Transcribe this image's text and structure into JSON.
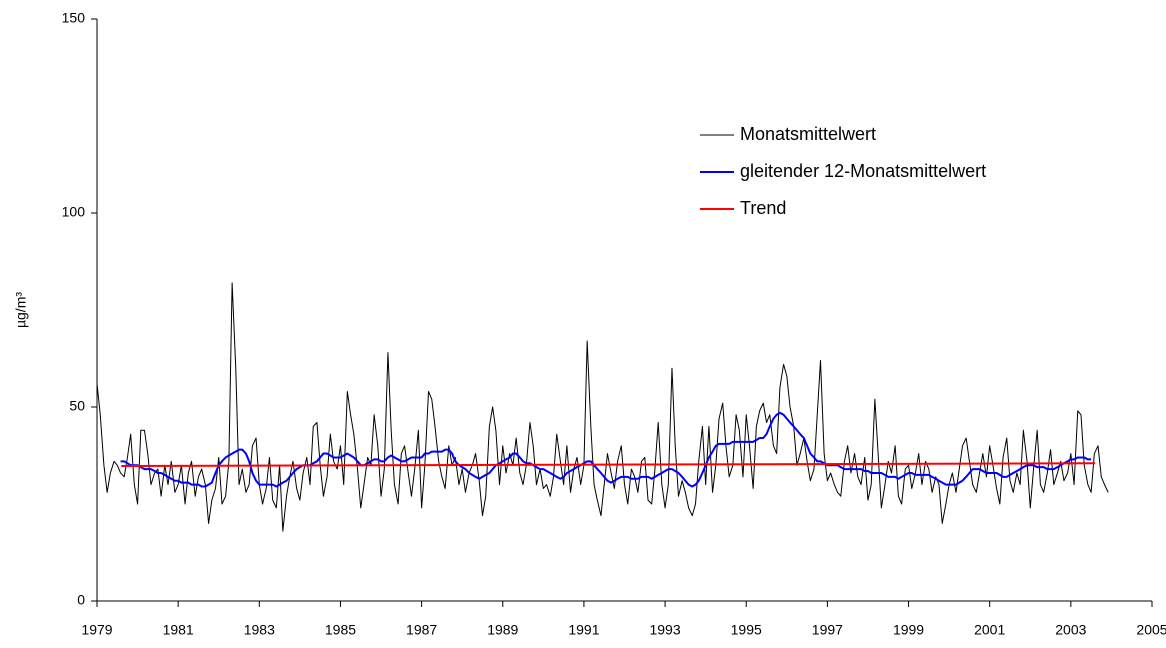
{
  "chart_data": {
    "type": "line",
    "ylabel": "µg/m³",
    "legend": "upper right",
    "xlim": [
      1979,
      2005
    ],
    "xticks": [
      1979,
      1981,
      1983,
      1985,
      1987,
      1989,
      1991,
      1993,
      1995,
      1997,
      1999,
      2001,
      2003,
      2005
    ],
    "ylim": [
      0,
      150
    ],
    "yticks": [
      0,
      50,
      100,
      150
    ],
    "x": [
      1979,
      1979.08,
      1979.17,
      1979.25,
      1979.33,
      1979.42,
      1979.5,
      1979.58,
      1979.67,
      1979.75,
      1979.83,
      1979.92,
      1980,
      1980.08,
      1980.17,
      1980.25,
      1980.33,
      1980.42,
      1980.5,
      1980.58,
      1980.67,
      1980.75,
      1980.83,
      1980.92,
      1981,
      1981.08,
      1981.17,
      1981.25,
      1981.33,
      1981.42,
      1981.5,
      1981.58,
      1981.67,
      1981.75,
      1981.83,
      1981.92,
      1982,
      1982.08,
      1982.17,
      1982.25,
      1982.33,
      1982.42,
      1982.5,
      1982.58,
      1982.67,
      1982.75,
      1982.83,
      1982.92,
      1983,
      1983.08,
      1983.17,
      1983.25,
      1983.33,
      1983.42,
      1983.5,
      1983.58,
      1983.67,
      1983.75,
      1983.83,
      1983.92,
      1984,
      1984.08,
      1984.17,
      1984.25,
      1984.33,
      1984.42,
      1984.5,
      1984.58,
      1984.67,
      1984.75,
      1984.83,
      1984.92,
      1985,
      1985.08,
      1985.17,
      1985.25,
      1985.33,
      1985.42,
      1985.5,
      1985.58,
      1985.67,
      1985.75,
      1985.83,
      1985.92,
      1986,
      1986.08,
      1986.17,
      1986.25,
      1986.33,
      1986.42,
      1986.5,
      1986.58,
      1986.67,
      1986.75,
      1986.83,
      1986.92,
      1987,
      1987.08,
      1987.17,
      1987.25,
      1987.33,
      1987.42,
      1987.5,
      1987.58,
      1987.67,
      1987.75,
      1987.83,
      1987.92,
      1988,
      1988.08,
      1988.17,
      1988.25,
      1988.33,
      1988.42,
      1988.5,
      1988.58,
      1988.67,
      1988.75,
      1988.83,
      1988.92,
      1989,
      1989.08,
      1989.17,
      1989.25,
      1989.33,
      1989.42,
      1989.5,
      1989.58,
      1989.67,
      1989.75,
      1989.83,
      1989.92,
      1990,
      1990.08,
      1990.17,
      1990.25,
      1990.33,
      1990.42,
      1990.5,
      1990.58,
      1990.67,
      1990.75,
      1990.83,
      1990.92,
      1991,
      1991.08,
      1991.17,
      1991.25,
      1991.33,
      1991.42,
      1991.5,
      1991.58,
      1991.67,
      1991.75,
      1991.83,
      1991.92,
      1992,
      1992.08,
      1992.17,
      1992.25,
      1992.33,
      1992.42,
      1992.5,
      1992.58,
      1992.67,
      1992.75,
      1992.83,
      1992.92,
      1993,
      1993.08,
      1993.17,
      1993.25,
      1993.33,
      1993.42,
      1993.5,
      1993.58,
      1993.67,
      1993.75,
      1993.83,
      1993.92,
      1994,
      1994.08,
      1994.17,
      1994.25,
      1994.33,
      1994.42,
      1994.5,
      1994.58,
      1994.67,
      1994.75,
      1994.83,
      1994.92,
      1995,
      1995.08,
      1995.17,
      1995.25,
      1995.33,
      1995.42,
      1995.5,
      1995.58,
      1995.67,
      1995.75,
      1995.83,
      1995.92,
      1996,
      1996.08,
      1996.17,
      1996.25,
      1996.33,
      1996.42,
      1996.5,
      1996.58,
      1996.67,
      1996.75,
      1996.83,
      1996.92,
      1997,
      1997.08,
      1997.17,
      1997.25,
      1997.33,
      1997.42,
      1997.5,
      1997.58,
      1997.67,
      1997.75,
      1997.83,
      1997.92,
      1998,
      1998.08,
      1998.17,
      1998.25,
      1998.33,
      1998.42,
      1998.5,
      1998.58,
      1998.67,
      1998.75,
      1998.83,
      1998.92,
      1999,
      1999.08,
      1999.17,
      1999.25,
      1999.33,
      1999.42,
      1999.5,
      1999.58,
      1999.67,
      1999.75,
      1999.83,
      1999.92,
      2000,
      2000.08,
      2000.17,
      2000.25,
      2000.33,
      2000.42,
      2000.5,
      2000.58,
      2000.67,
      2000.75,
      2000.83,
      2000.92,
      2001,
      2001.08,
      2001.17,
      2001.25,
      2001.33,
      2001.42,
      2001.5,
      2001.58,
      2001.67,
      2001.75,
      2001.83,
      2001.92,
      2002,
      2002.08,
      2002.17,
      2002.25,
      2002.33,
      2002.42,
      2002.5,
      2002.58,
      2002.67,
      2002.75,
      2002.83,
      2002.92,
      2003,
      2003.08,
      2003.17,
      2003.25,
      2003.33,
      2003.42,
      2003.5,
      2003.58,
      2003.67,
      2003.75,
      2003.83,
      2003.92
    ],
    "series": [
      {
        "name": "Monatsmittelwert",
        "color": "#000000",
        "width": 1,
        "values": [
          56,
          48,
          35,
          28,
          33,
          36,
          35,
          33,
          32,
          37,
          43,
          30,
          25,
          44,
          44,
          38,
          30,
          33,
          34,
          27,
          35,
          30,
          36,
          28,
          30,
          35,
          25,
          33,
          36,
          27,
          32,
          34,
          30,
          20,
          26,
          29,
          37,
          25,
          27,
          36,
          82,
          60,
          30,
          34,
          28,
          30,
          40,
          42,
          30,
          25,
          29,
          37,
          26,
          24,
          35,
          18,
          27,
          32,
          36,
          29,
          26,
          33,
          37,
          30,
          45,
          46,
          35,
          27,
          32,
          43,
          36,
          34,
          40,
          30,
          54,
          48,
          43,
          34,
          24,
          30,
          37,
          35,
          48,
          40,
          27,
          34,
          64,
          44,
          30,
          25,
          38,
          40,
          33,
          27,
          34,
          44,
          24,
          35,
          54,
          52,
          45,
          36,
          32,
          29,
          40,
          35,
          37,
          30,
          34,
          28,
          33,
          35,
          38,
          31,
          22,
          27,
          45,
          50,
          44,
          30,
          40,
          33,
          38,
          35,
          42,
          33,
          30,
          35,
          46,
          40,
          30,
          34,
          29,
          30,
          27,
          32,
          43,
          36,
          30,
          40,
          28,
          34,
          37,
          30,
          35,
          67,
          45,
          30,
          26,
          22,
          30,
          38,
          33,
          29,
          36,
          40,
          30,
          25,
          34,
          32,
          28,
          36,
          37,
          26,
          25,
          34,
          46,
          30,
          24,
          30,
          60,
          40,
          27,
          31,
          28,
          24,
          22,
          25,
          36,
          45,
          30,
          45,
          28,
          35,
          47,
          51,
          40,
          32,
          35,
          48,
          44,
          32,
          48,
          40,
          29,
          45,
          49,
          51,
          46,
          48,
          40,
          38,
          55,
          61,
          58,
          50,
          45,
          35,
          38,
          42,
          36,
          31,
          34,
          48,
          62,
          38,
          31,
          33,
          30,
          28,
          27,
          36,
          40,
          33,
          38,
          32,
          30,
          37,
          26,
          30,
          52,
          38,
          24,
          30,
          36,
          33,
          40,
          27,
          25,
          34,
          35,
          29,
          33,
          38,
          30,
          36,
          34,
          28,
          32,
          30,
          20,
          25,
          30,
          33,
          28,
          34,
          40,
          42,
          36,
          30,
          28,
          33,
          38,
          32,
          40,
          35,
          29,
          25,
          37,
          42,
          31,
          28,
          33,
          30,
          44,
          36,
          24,
          34,
          44,
          30,
          28,
          33,
          39,
          30,
          33,
          36,
          31,
          33,
          38,
          30,
          49,
          48,
          35,
          30,
          28,
          38,
          40,
          32,
          30,
          28
        ]
      },
      {
        "name": "gleitender 12-Monatsmittelwert",
        "color": "#0000ff",
        "width": 2,
        "values": [
          null,
          null,
          null,
          null,
          null,
          null,
          null,
          36,
          36,
          35.5,
          35,
          35,
          35,
          34.5,
          34,
          34,
          34,
          33.5,
          33,
          33,
          32.5,
          32,
          31.5,
          31,
          31,
          30.5,
          30.5,
          30.5,
          30,
          30,
          30,
          29.5,
          29.5,
          30,
          30.5,
          33,
          35,
          36,
          37,
          37.5,
          38,
          38.5,
          39,
          39,
          38,
          36,
          33,
          31,
          30,
          30,
          30,
          30,
          30,
          29.5,
          30,
          30.5,
          31,
          32,
          33,
          34,
          34.5,
          35,
          35,
          35,
          35.5,
          36,
          37,
          38,
          38,
          37.5,
          37,
          37,
          37,
          37.5,
          38,
          37.5,
          37,
          36,
          35,
          35,
          35.5,
          36,
          36.5,
          36.5,
          36,
          36,
          37,
          37.5,
          37,
          36.5,
          36,
          36,
          36.5,
          37,
          37,
          37,
          37,
          38,
          38,
          38.5,
          38.5,
          38.5,
          38.5,
          39,
          39,
          38,
          36,
          35,
          34.5,
          34,
          33,
          32.5,
          32,
          31.5,
          32,
          32.5,
          33,
          34,
          35,
          35.5,
          36,
          36.5,
          37,
          38,
          38,
          37,
          36,
          35.5,
          35.5,
          35,
          34.5,
          34,
          34,
          33.5,
          33,
          32.5,
          32,
          31.5,
          32,
          33,
          33.5,
          34,
          34.5,
          35,
          35.5,
          36,
          36,
          35,
          34,
          33,
          32,
          31,
          30.5,
          31,
          31.5,
          32,
          32,
          32,
          31.5,
          31.5,
          31.5,
          32,
          32,
          32,
          31.5,
          32,
          32.5,
          33,
          33.5,
          34,
          34,
          33.5,
          33,
          32,
          31,
          30,
          29.5,
          30,
          31,
          33,
          35,
          37,
          38.5,
          40,
          40.5,
          40.5,
          40.5,
          40.5,
          41,
          41,
          41,
          41,
          41,
          41,
          41,
          41.5,
          42,
          42,
          43,
          45,
          47,
          48,
          48.5,
          48,
          47,
          46,
          45,
          44,
          43,
          42,
          40,
          38,
          37,
          36,
          36,
          35.5,
          35,
          35,
          35,
          35,
          34.5,
          34,
          34,
          34,
          34,
          34,
          34,
          33.5,
          33.5,
          33,
          33,
          33,
          33,
          32.5,
          32,
          32,
          32,
          31.5,
          32,
          32.5,
          33,
          33,
          32.5,
          32.5,
          32.5,
          32.5,
          32.5,
          32,
          31.5,
          31,
          30.5,
          30,
          30,
          30,
          30,
          30.5,
          31,
          32,
          33,
          34,
          34,
          34,
          33.5,
          33,
          33,
          33,
          33,
          32.5,
          32,
          32,
          32.5,
          33,
          33.5,
          34,
          34.5,
          35,
          35,
          35,
          34.5,
          34.5,
          34.5,
          34,
          34,
          34,
          34.5,
          35,
          35.5,
          36,
          36.5,
          36.5,
          37,
          37,
          37,
          36.5,
          36.5,
          null,
          null,
          null,
          null,
          null
        ]
      },
      {
        "name": "Trend",
        "color": "#ff0000",
        "width": 2,
        "x": [
          1979.6,
          2003.6
        ],
        "values": [
          34.8,
          35.5
        ]
      }
    ]
  }
}
